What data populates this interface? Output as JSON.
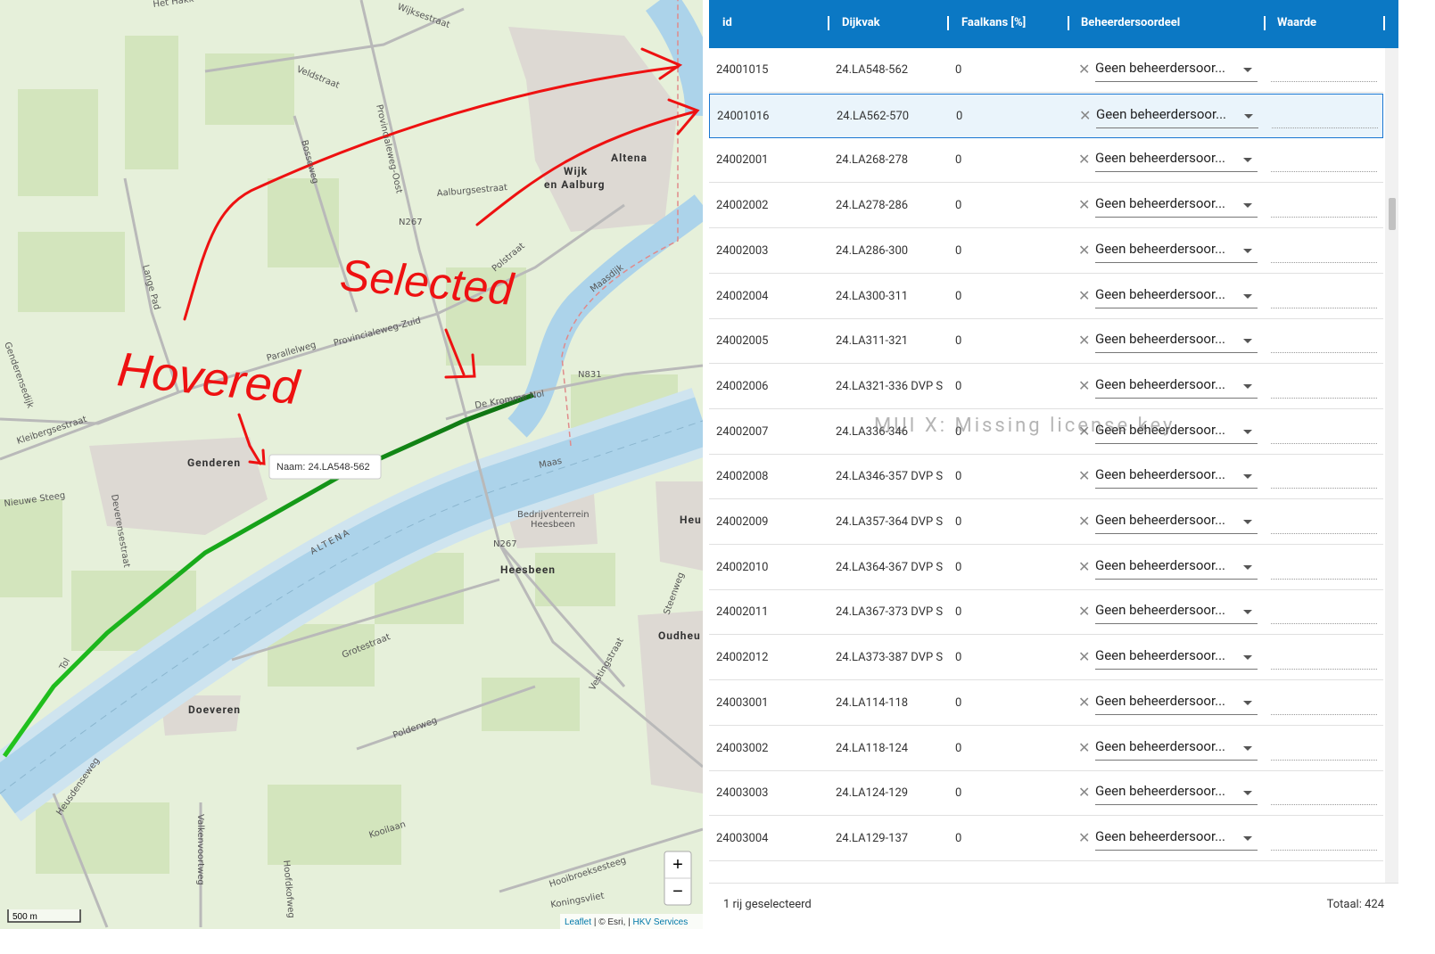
{
  "map": {
    "labels": [
      "Wijksestraat",
      "Veldstraat",
      "Provincialeweg-Oost",
      "Bosseweg",
      "Aalburgsestraat",
      "N267",
      "Wijk",
      "en Aalburg",
      "Altena",
      "Lange Pad",
      "Polstraat",
      "Maasdijk",
      "Provincialeweg-Zuid",
      "Parallelweg",
      "Genderensedijk",
      "Kleibergsestraat",
      "Genderen",
      "Nieuwe Steeg",
      "Deverensestraat",
      "N831",
      "De Kromme Nol",
      "Maas",
      "ALTENA",
      "Bedrijventerrein",
      "Heesbeen",
      "N267",
      "Heesbeen",
      "Heu",
      "Oudheu",
      "Grotestraat",
      "Doeveren",
      "Polderweg",
      "Heusdenseweg",
      "Valkenvoortweg",
      "Kooilaan",
      "Hooibroeksesteeg",
      "Koningsvliet",
      "Steenweg",
      "Vestingstraat",
      "Tol",
      "Hoofdkofweg",
      "Het Hakk"
    ],
    "annotations": {
      "hovered": "Hovered",
      "selected": "Selected"
    },
    "tooltip": "Naam: 24.LA548-562",
    "zoom_in": "+",
    "zoom_out": "−",
    "scale": "500 m",
    "attribution": [
      "Leaflet",
      "|",
      "© Esri,",
      "|",
      "HKV Services"
    ]
  },
  "table": {
    "columns": [
      "id",
      "Dijkvak",
      "Faalkans [%]",
      "Beheerdersoordeel",
      "Waarde"
    ],
    "rows": [
      [
        "24001015",
        "24.LA548-562",
        0,
        "Geen beheerdersoor..."
      ],
      [
        "24001016",
        "24.LA562-570",
        0,
        "Geen beheerdersoor..."
      ],
      [
        "24002001",
        "24.LA268-278",
        0,
        "Geen beheerdersoor..."
      ],
      [
        "24002002",
        "24.LA278-286",
        0,
        "Geen beheerdersoor..."
      ],
      [
        "24002003",
        "24.LA286-300",
        0,
        "Geen beheerdersoor..."
      ],
      [
        "24002004",
        "24.LA300-311",
        0,
        "Geen beheerdersoor..."
      ],
      [
        "24002005",
        "24.LA311-321",
        0,
        "Geen beheerdersoor..."
      ],
      [
        "24002006",
        "24.LA321-336 DVP S",
        0,
        "Geen beheerdersoor..."
      ],
      [
        "24002007",
        "24.LA336-346",
        0,
        "Geen beheerdersoor..."
      ],
      [
        "24002008",
        "24.LA346-357 DVP S",
        0,
        "Geen beheerdersoor..."
      ],
      [
        "24002009",
        "24.LA357-364 DVP S",
        0,
        "Geen beheerdersoor..."
      ],
      [
        "24002010",
        "24.LA364-367 DVP S",
        0,
        "Geen beheerdersoor..."
      ],
      [
        "24002011",
        "24.LA367-373 DVP S",
        0,
        "Geen beheerdersoor..."
      ],
      [
        "24002012",
        "24.LA373-387 DVP S",
        0,
        "Geen beheerdersoor..."
      ],
      [
        "24003001",
        "24.LA114-118",
        0,
        "Geen beheerdersoor..."
      ],
      [
        "24003002",
        "24.LA118-124",
        0,
        "Geen beheerdersoor..."
      ],
      [
        "24003003",
        "24.LA124-129",
        0,
        "Geen beheerdersoor..."
      ],
      [
        "24003004",
        "24.LA129-137",
        0,
        "Geen beheerdersoor..."
      ]
    ],
    "selected_row": 1,
    "watermark": "MUI X: Missing license key",
    "footer": {
      "selection": "1 rij geselecteerd",
      "total": "Totaal: 424"
    }
  }
}
